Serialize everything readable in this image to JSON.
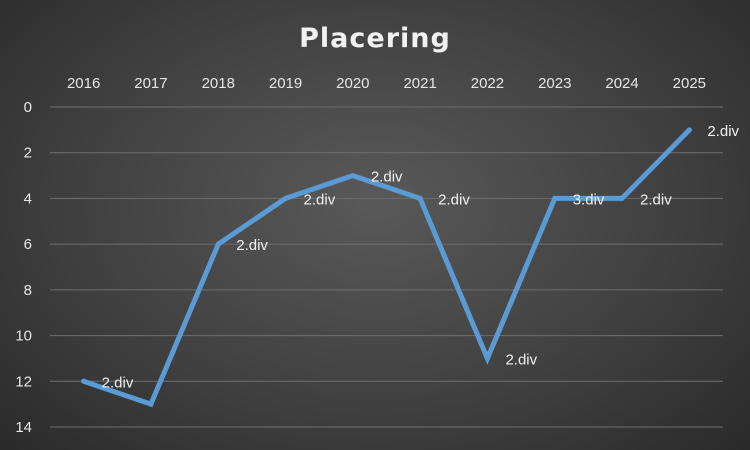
{
  "chart_data": {
    "type": "line",
    "title": "Placering",
    "xlabel": "",
    "ylabel": "",
    "categories": [
      "2016",
      "2017",
      "2018",
      "2019",
      "2020",
      "2021",
      "2022",
      "2023",
      "2024",
      "2025"
    ],
    "series": [
      {
        "values": [
          12,
          13,
          6,
          4,
          3,
          4,
          11,
          4,
          4,
          1
        ],
        "data_labels": [
          "2.div",
          "",
          "2.div",
          "2.div",
          "2.div",
          "2.div",
          "2.div",
          "3.div",
          "2.div",
          "2.div"
        ],
        "color": "#5b9bd5"
      }
    ],
    "ylim": [
      0,
      14
    ],
    "y_ticks": [
      "0",
      "2",
      "4",
      "6",
      "8",
      "10",
      "12",
      "14"
    ],
    "y_reversed": true,
    "x_axis_position": "top",
    "grid": true,
    "legend": "none"
  }
}
